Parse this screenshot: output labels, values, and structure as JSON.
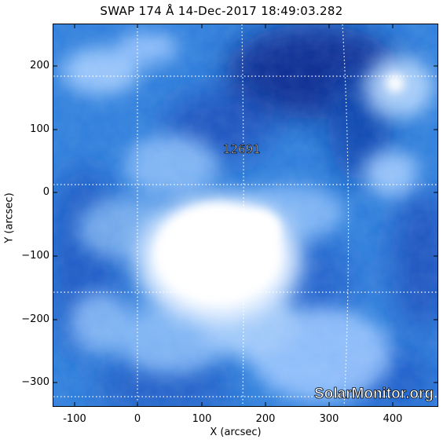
{
  "title": "SWAP 174 Å 14-Dec-2017 18:49:03.282",
  "axes": {
    "xlabel": "X (arcsec)",
    "ylabel": "Y (arcsec)",
    "x_ticks": [
      "-100",
      "0",
      "100",
      "200",
      "300",
      "400"
    ],
    "y_ticks": [
      "200",
      "100",
      "0",
      "−100",
      "−200",
      "−300"
    ]
  },
  "region": {
    "number": "12691"
  },
  "watermark": "SolarMonitor.org",
  "colors": {
    "background_blue": "#2a78d8",
    "dark_blue": "#0b3aa0",
    "bright": "#ffffff"
  }
}
